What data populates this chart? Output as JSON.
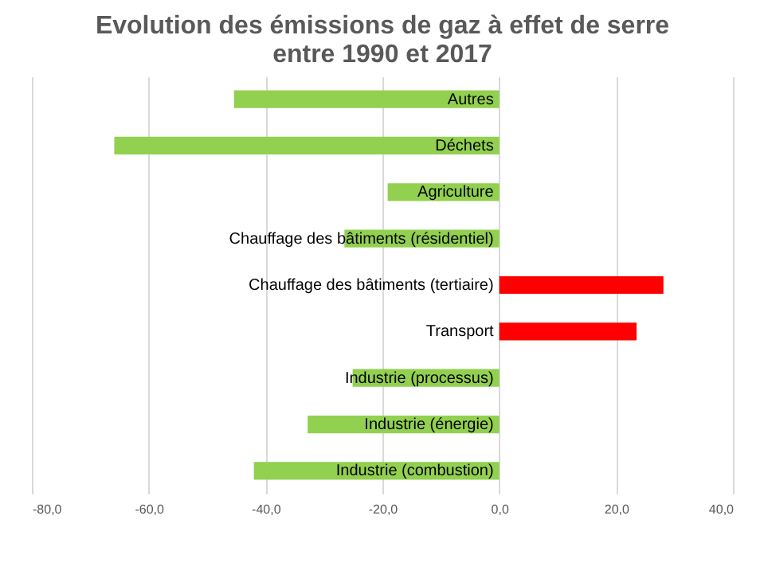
{
  "chart_data": {
    "type": "bar",
    "orientation": "horizontal",
    "title": [
      "Evolution des émissions de gaz à effet de serre",
      "entre 1990 et 2017"
    ],
    "categories": [
      "Autres",
      "Déchets",
      "Agriculture",
      "Chauffage des bâtiments (résidentiel)",
      "Chauffage des bâtiments (tertiaire)",
      "Transport",
      "Industrie (processus)",
      "Industrie (énergie)",
      "Industrie (combustion)"
    ],
    "values": [
      -45.4,
      -65.9,
      -19.1,
      -26.5,
      28.1,
      23.5,
      -25.1,
      -32.8,
      -42.0
    ],
    "colors": [
      "#92d050",
      "#92d050",
      "#92d050",
      "#92d050",
      "#ff0000",
      "#ff0000",
      "#92d050",
      "#92d050",
      "#92d050"
    ],
    "xlim": [
      -80,
      40
    ],
    "xticks": [
      {
        "value": -80,
        "label": "-80,0"
      },
      {
        "value": -60,
        "label": "-60,0"
      },
      {
        "value": -40,
        "label": "-40,0"
      },
      {
        "value": -20,
        "label": "-20,0"
      },
      {
        "value": 0,
        "label": "0,0"
      },
      {
        "value": 20,
        "label": "20,0"
      },
      {
        "value": 40,
        "label": "40,0"
      }
    ],
    "grid": "x"
  }
}
